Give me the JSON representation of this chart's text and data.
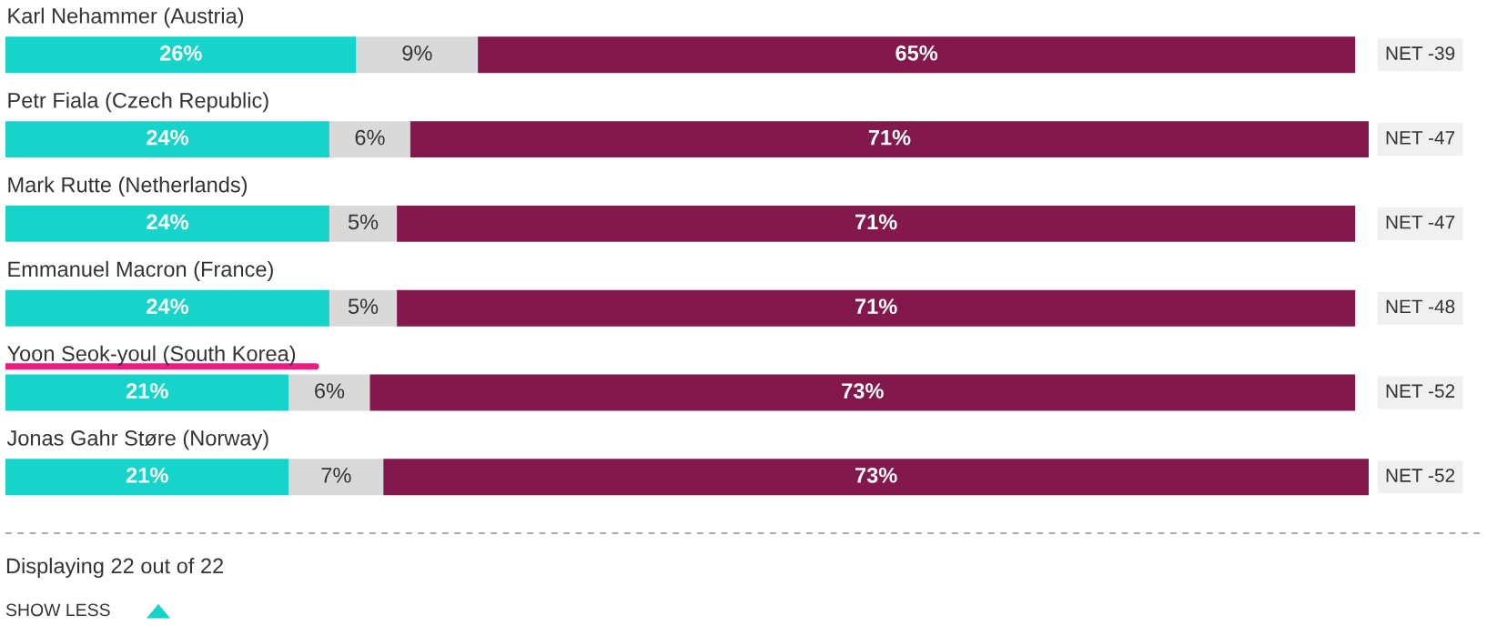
{
  "chart_data": {
    "type": "bar",
    "orientation": "horizontal",
    "stacked": true,
    "categories": [
      "Karl Nehammer (Austria)",
      "Petr Fiala (Czech Republic)",
      "Mark Rutte (Netherlands)",
      "Emmanuel Macron (France)",
      "Yoon Seok-youl (South Korea)",
      "Jonas Gahr Støre (Norway)"
    ],
    "series": [
      {
        "color": "#17d4cb",
        "values": [
          26,
          24,
          24,
          24,
          21,
          21
        ],
        "value_labels": [
          "26%",
          "24%",
          "24%",
          "24%",
          "21%",
          "21%"
        ]
      },
      {
        "color": "#d9d9d9",
        "values": [
          9,
          6,
          5,
          5,
          6,
          7
        ],
        "value_labels": [
          "9%",
          "6%",
          "5%",
          "5%",
          "6%",
          "7%"
        ]
      },
      {
        "color": "#82184b",
        "values": [
          65,
          71,
          71,
          71,
          73,
          73
        ],
        "value_labels": [
          "65%",
          "71%",
          "71%",
          "71%",
          "73%",
          "73%"
        ]
      }
    ],
    "xlim": [
      0,
      101
    ],
    "annotations": [
      "NET -39",
      "NET -47",
      "NET -47",
      "NET -48",
      "NET -52",
      "NET -52",
      "Displaying 22 out of 22",
      "SHOW LESS"
    ]
  }
}
